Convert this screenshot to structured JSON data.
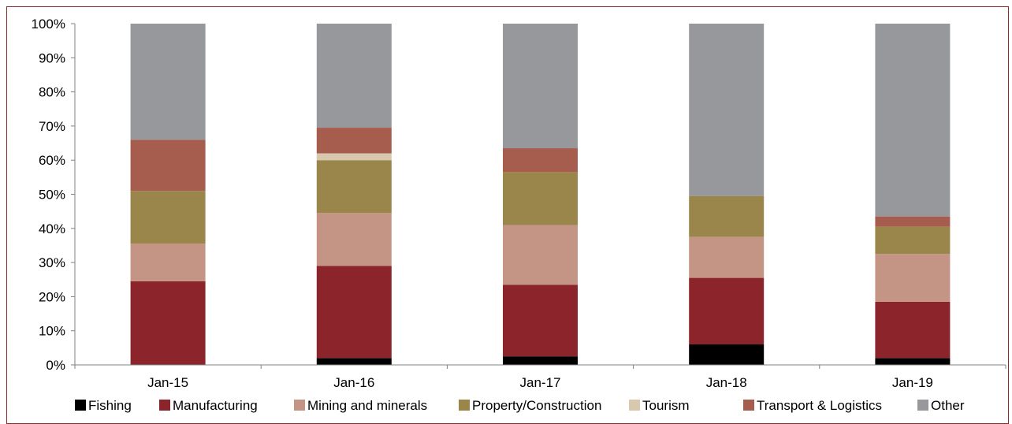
{
  "header": {
    "cut_title": ""
  },
  "chart_data": {
    "type": "bar",
    "stacked": true,
    "categories": [
      "Jan-15",
      "Jan-16",
      "Jan-17",
      "Jan-18",
      "Jan-19"
    ],
    "series": [
      {
        "name": "Fishing",
        "color": "#000000",
        "values": [
          0.0,
          2.0,
          2.5,
          6.0,
          2.0
        ]
      },
      {
        "name": "Manufacturing",
        "color": "#8B252B",
        "values": [
          24.5,
          27.0,
          21.0,
          19.5,
          16.5
        ]
      },
      {
        "name": "Mining and minerals",
        "color": "#C49585",
        "values": [
          11.0,
          15.5,
          17.5,
          12.0,
          14.0
        ]
      },
      {
        "name": "Property/Construction",
        "color": "#9A864B",
        "values": [
          15.5,
          15.5,
          15.5,
          12.0,
          8.0
        ]
      },
      {
        "name": "Tourism",
        "color": "#D8C8AE",
        "values": [
          0.0,
          2.0,
          0.0,
          0.0,
          0.0
        ]
      },
      {
        "name": "Transport & Logistics",
        "color": "#A65D4D",
        "values": [
          15.0,
          7.5,
          7.0,
          0.0,
          3.0
        ]
      },
      {
        "name": "Other",
        "color": "#97989C",
        "values": [
          34.0,
          30.5,
          36.5,
          50.5,
          56.5
        ]
      }
    ],
    "y_ticks": [
      "0%",
      "10%",
      "20%",
      "30%",
      "40%",
      "50%",
      "60%",
      "70%",
      "80%",
      "90%",
      "100%"
    ],
    "ylim": [
      0,
      100
    ],
    "grid": false,
    "legend_position": "bottom"
  }
}
